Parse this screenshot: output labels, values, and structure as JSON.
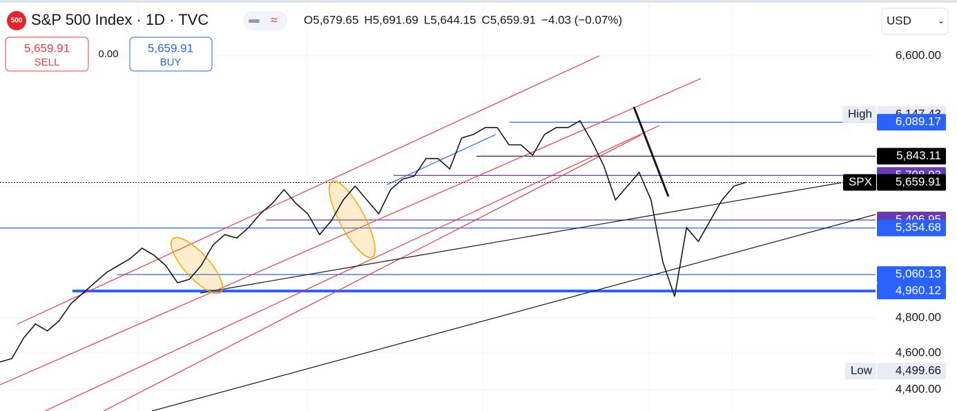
{
  "header": {
    "logo": "500",
    "title": "S&P 500 Index · 1D · TVC",
    "ohlc": [
      {
        "key": "O",
        "value": "5,679.65"
      },
      {
        "key": "H",
        "value": "5,691.69"
      },
      {
        "key": "L",
        "value": "5,644.15"
      },
      {
        "key": "C",
        "value": "5,659.91"
      }
    ],
    "change": "−4.03 (−0.07%)",
    "currency": "USD"
  },
  "trade": {
    "sell_price": "5,659.91",
    "sell": "SELL",
    "spread": "0.00",
    "buy_price": "5,659.91",
    "buy": "BUY"
  },
  "chart_data": {
    "type": "line",
    "log_scale": true,
    "grid": true,
    "ylim": [
      4287,
      7064
    ],
    "yticks": [
      {
        "value": 4400,
        "label": "4,400.00"
      },
      {
        "value": 4600,
        "label": "4,600.00"
      },
      {
        "value": 4800,
        "label": "4,800.00"
      },
      {
        "value": 6600,
        "label": "6,600.00"
      }
    ],
    "series": [
      {
        "name": "SPX",
        "color": "#131722",
        "values": [
          4550,
          4569,
          4685,
          4765,
          4725,
          4784,
          4885,
          4947,
          5010,
          5073,
          5116,
          5159,
          5225,
          5181,
          5116,
          5010,
          5031,
          5116,
          5246,
          5312,
          5290,
          5357,
          5448,
          5517,
          5610,
          5517,
          5448,
          5312,
          5403,
          5540,
          5634,
          5540,
          5448,
          5610,
          5681,
          5704,
          5826,
          5826,
          5753,
          5974,
          5999,
          6050,
          6050,
          5924,
          5924,
          5850,
          5999,
          6050,
          6050,
          6100,
          5949,
          5777,
          5540,
          5634,
          5729,
          5540,
          5137,
          4927,
          5357,
          5268,
          5403,
          5540,
          5634,
          5659.91
        ]
      }
    ],
    "levels": [
      {
        "name": "High",
        "value": 6147.43,
        "label": "6,147.43",
        "color": "#e8ecf3",
        "text_color": "#131722"
      },
      {
        "value": 6089.17,
        "label": "6,089.17",
        "color": "#2962ff",
        "text_color": "#ffffff"
      },
      {
        "value": 5843.11,
        "label": "5,843.11",
        "color": "#000000",
        "text_color": "#ffffff"
      },
      {
        "value": 5708.03,
        "label": "5,708.03",
        "color": "#673ab7",
        "text_color": "#ffffff"
      },
      {
        "name": "SPX",
        "value": 5659.91,
        "label": "5,659.91",
        "color": "#000000",
        "text_color": "#ffffff"
      },
      {
        "value": 5406.95,
        "label": "5,406.95",
        "color": "#673ab7",
        "text_color": "#ffffff"
      },
      {
        "value": 5354.68,
        "label": "5,354.68",
        "color": "#2962ff",
        "text_color": "#ffffff"
      },
      {
        "value": 5060.13,
        "label": "5,060.13",
        "color": "#2962ff",
        "text_color": "#ffffff"
      },
      {
        "value": 4960.12,
        "label": "4,960.12",
        "color": "#2962ff",
        "text_color": "#ffffff"
      },
      {
        "name": "Low",
        "value": 4499.66,
        "label": "4,499.66",
        "color": "#e8ecf3",
        "text_color": "#131722"
      }
    ]
  }
}
